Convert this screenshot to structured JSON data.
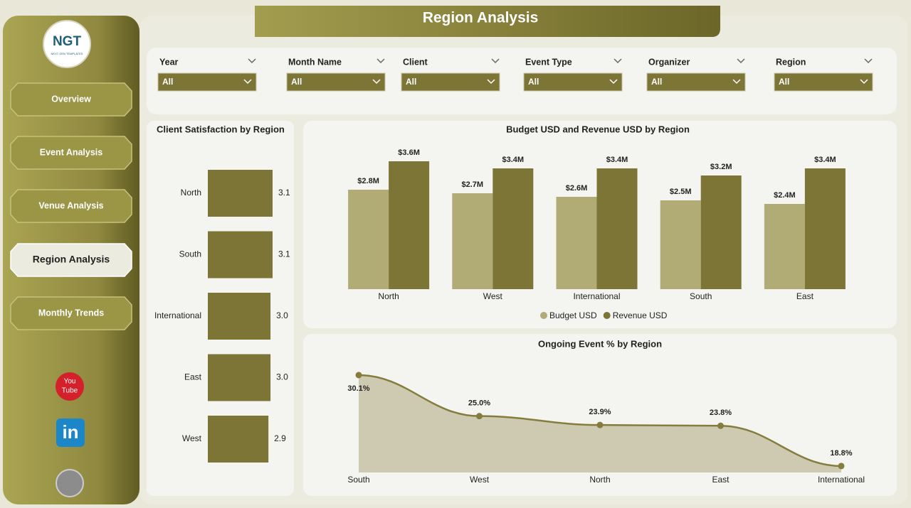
{
  "title": "Region Analysis",
  "logo": {
    "text": "NGT",
    "tagline": "NEXT GEN TEMPLATES"
  },
  "nav": {
    "items": [
      "Overview",
      "Event Analysis",
      "Venue Analysis",
      "Region Analysis",
      "Monthly Trends"
    ],
    "active": 3
  },
  "filters": [
    {
      "label": "Year",
      "value": "All"
    },
    {
      "label": "Month Name",
      "value": "All"
    },
    {
      "label": "Client",
      "value": "All"
    },
    {
      "label": "Event Type",
      "value": "All"
    },
    {
      "label": "Organizer",
      "value": "All"
    },
    {
      "label": "Region",
      "value": "All"
    }
  ],
  "social": {
    "youtube": [
      "You",
      "Tube"
    ],
    "linkedin": "in"
  },
  "chart_data": [
    {
      "type": "hbar",
      "title": "Client Satisfaction by Region",
      "categories": [
        "North",
        "South",
        "International",
        "East",
        "West"
      ],
      "values": [
        3.1,
        3.1,
        3.0,
        3.0,
        2.9
      ],
      "value_labels": [
        "3.1",
        "3.1",
        "3.0",
        "3.0",
        "2.9"
      ],
      "color": "#7d7535",
      "xlim": [
        0,
        3.1
      ]
    },
    {
      "type": "bar",
      "title": "Budget USD and Revenue USD by Region",
      "categories": [
        "North",
        "West",
        "International",
        "South",
        "East"
      ],
      "series": [
        {
          "name": "Budget USD",
          "color": "#b1ab76",
          "values": [
            2800000,
            2700000,
            2600000,
            2500000,
            2400000
          ],
          "value_labels": [
            "$2.8M",
            "$2.7M",
            "$2.6M",
            "$2.5M",
            "$2.4M"
          ]
        },
        {
          "name": "Revenue USD",
          "color": "#7d7535",
          "values": [
            3600000,
            3400000,
            3400000,
            3200000,
            3400000
          ],
          "value_labels": [
            "$3.6M",
            "$3.4M",
            "$3.4M",
            "$3.2M",
            "$3.4M"
          ]
        }
      ],
      "ylim": [
        0,
        4000000
      ],
      "legend": "bottom"
    },
    {
      "type": "area",
      "title": "Ongoing Event % by Region",
      "categories": [
        "South",
        "West",
        "North",
        "East",
        "International"
      ],
      "values": [
        30.1,
        25.0,
        23.9,
        23.8,
        18.8
      ],
      "value_labels": [
        "30.1%",
        "25.0%",
        "23.9%",
        "23.8%",
        "18.8%"
      ],
      "color": "#857c3d",
      "ylim": [
        18,
        32.5
      ]
    }
  ]
}
